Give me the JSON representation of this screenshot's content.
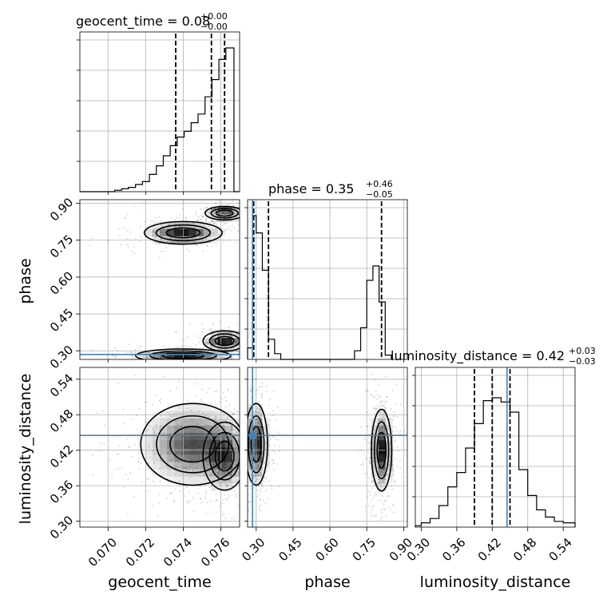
{
  "chart_data": {
    "type": "corner",
    "parameters": [
      "geocent_time",
      "phase",
      "luminosity_distance"
    ],
    "titles": [
      {
        "param": "geocent_time",
        "text": "geocent_time = 0.08",
        "upper": "+0.00",
        "lower": "−0.00"
      },
      {
        "param": "phase",
        "text": "phase = 0.35",
        "upper": "+0.46",
        "lower": "−0.05"
      },
      {
        "param": "luminosity_distance",
        "text": "luminosity_distance = 0.42",
        "upper": "+0.03",
        "lower": "−0.03"
      }
    ],
    "axis_labels": {
      "geocent_time": "geocent_time",
      "phase": "phase",
      "luminosity_distance": "luminosity_distance"
    },
    "ranges": {
      "geocent_time": [
        0.0685,
        0.077
      ],
      "phase": [
        0.265,
        0.915
      ],
      "luminosity_distance": [
        0.29,
        0.56
      ]
    },
    "ticks": {
      "geocent_time": {
        "values": [
          0.07,
          0.072,
          0.074,
          0.076
        ],
        "labels": [
          "0.070",
          "0.072",
          "0.074",
          "0.076"
        ]
      },
      "phase": {
        "values": [
          0.3,
          0.45,
          0.6,
          0.75,
          0.9
        ],
        "labels": [
          "0.30",
          "0.45",
          "0.60",
          "0.75",
          "0.90"
        ]
      },
      "luminosity_distance": {
        "values": [
          0.3,
          0.36,
          0.42,
          0.48,
          0.54
        ],
        "labels": [
          "0.30",
          "0.36",
          "0.42",
          "0.48",
          "0.54"
        ]
      }
    },
    "truths": {
      "geocent_time": null,
      "phase": 0.285,
      "luminosity_distance": 0.445
    },
    "quantiles": {
      "geocent_time": [
        0.0736,
        0.0755,
        0.0762
      ],
      "phase": [
        0.29,
        0.35,
        0.81
      ],
      "luminosity_distance": [
        0.39,
        0.42,
        0.45
      ]
    },
    "histograms": {
      "geocent_time": {
        "edges": [
          0.0685,
          0.06887,
          0.06924,
          0.06961,
          0.06998,
          0.07035,
          0.07072,
          0.07109,
          0.07146,
          0.07183,
          0.0722,
          0.07257,
          0.07294,
          0.07331,
          0.07368,
          0.07405,
          0.07442,
          0.07479,
          0.07516,
          0.07553,
          0.0759,
          0.07627,
          0.0767,
          0.077
        ],
        "counts": [
          0,
          0,
          0,
          0,
          0,
          0.01,
          0.02,
          0.03,
          0.05,
          0.07,
          0.12,
          0.18,
          0.25,
          0.32,
          0.38,
          0.42,
          0.48,
          0.54,
          0.66,
          0.78,
          0.92,
          1.0,
          0
        ]
      },
      "phase": {
        "edges": [
          0.265,
          0.285,
          0.3,
          0.325,
          0.35,
          0.375,
          0.4,
          0.7,
          0.725,
          0.75,
          0.775,
          0.8,
          0.825,
          0.85
        ],
        "counts": [
          0.08,
          1.0,
          0.88,
          0.62,
          0.14,
          0.04,
          0,
          0.06,
          0.22,
          0.55,
          0.65,
          0.4,
          0.03
        ]
      },
      "luminosity_distance": {
        "edges": [
          0.29,
          0.3,
          0.315,
          0.33,
          0.345,
          0.36,
          0.375,
          0.39,
          0.405,
          0.42,
          0.435,
          0.45,
          0.465,
          0.48,
          0.495,
          0.51,
          0.525,
          0.54,
          0.56
        ],
        "counts": [
          0.01,
          0.03,
          0.06,
          0.15,
          0.28,
          0.38,
          0.55,
          0.72,
          0.88,
          0.9,
          0.87,
          0.8,
          0.4,
          0.22,
          0.12,
          0.07,
          0.04,
          0.03
        ]
      }
    },
    "density_2d": {
      "phase_vs_geocent_time": {
        "modes": [
          {
            "x": 0.0762,
            "y": 0.86,
            "sx": 0.00045,
            "sy": 0.012
          },
          {
            "x": 0.074,
            "y": 0.78,
            "sx": 0.0009,
            "sy": 0.02
          },
          {
            "x": 0.0762,
            "y": 0.34,
            "sx": 0.0005,
            "sy": 0.018
          },
          {
            "x": 0.074,
            "y": 0.28,
            "sx": 0.0011,
            "sy": 0.012
          }
        ]
      },
      "luminosity_distance_vs_geocent_time": {
        "modes": [
          {
            "x": 0.0762,
            "y": 0.41,
            "sx": 0.0005,
            "sy": 0.025
          },
          {
            "x": 0.0745,
            "y": 0.43,
            "sx": 0.0012,
            "sy": 0.03
          }
        ]
      },
      "luminosity_distance_vs_phase": {
        "modes": [
          {
            "x": 0.3,
            "y": 0.43,
            "sx": 0.02,
            "sy": 0.03
          },
          {
            "x": 0.81,
            "y": 0.42,
            "sx": 0.018,
            "sy": 0.03
          }
        ]
      }
    },
    "grid": true
  }
}
